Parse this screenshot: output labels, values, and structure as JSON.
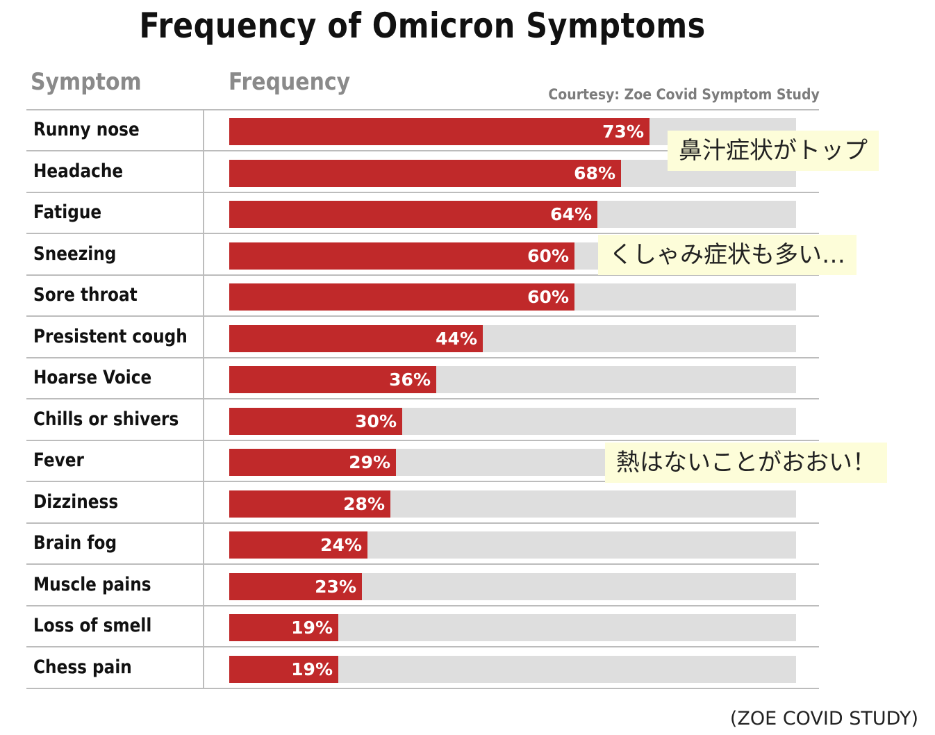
{
  "chart_data": {
    "type": "bar",
    "orientation": "horizontal",
    "title": "Frequency of Omicron Symptoms",
    "column_headers": {
      "category": "Symptom",
      "value": "Frequency"
    },
    "credit": "Courtesy: Zoe Covid Symptom Study",
    "xlim": [
      0,
      100
    ],
    "unit": "%",
    "categories": [
      "Runny nose",
      "Headache",
      "Fatigue",
      "Sneezing",
      "Sore throat",
      "Presistent cough",
      "Hoarse Voice",
      "Chills or shivers",
      "Fever",
      "Dizziness",
      "Brain fog",
      "Muscle pains",
      "Loss of smell",
      "Chess pain"
    ],
    "values": [
      73,
      68,
      64,
      60,
      60,
      44,
      36,
      30,
      29,
      28,
      24,
      23,
      19,
      19
    ],
    "value_labels": [
      "73%",
      "68%",
      "64%",
      "60%",
      "60%",
      "44%",
      "36%",
      "30%",
      "29%",
      "28%",
      "24%",
      "23%",
      "19%",
      "19%"
    ],
    "colors": {
      "bar": "#c0292a",
      "track": "#dedede",
      "note_bg": "#fdfdd9"
    }
  },
  "annotations": [
    {
      "text": "鼻汁症状がトップ"
    },
    {
      "text": "くしゃみ症状も多い…"
    },
    {
      "text": "熱はないことがおおい！"
    }
  ],
  "source": "(ZOE COVID STUDY)"
}
